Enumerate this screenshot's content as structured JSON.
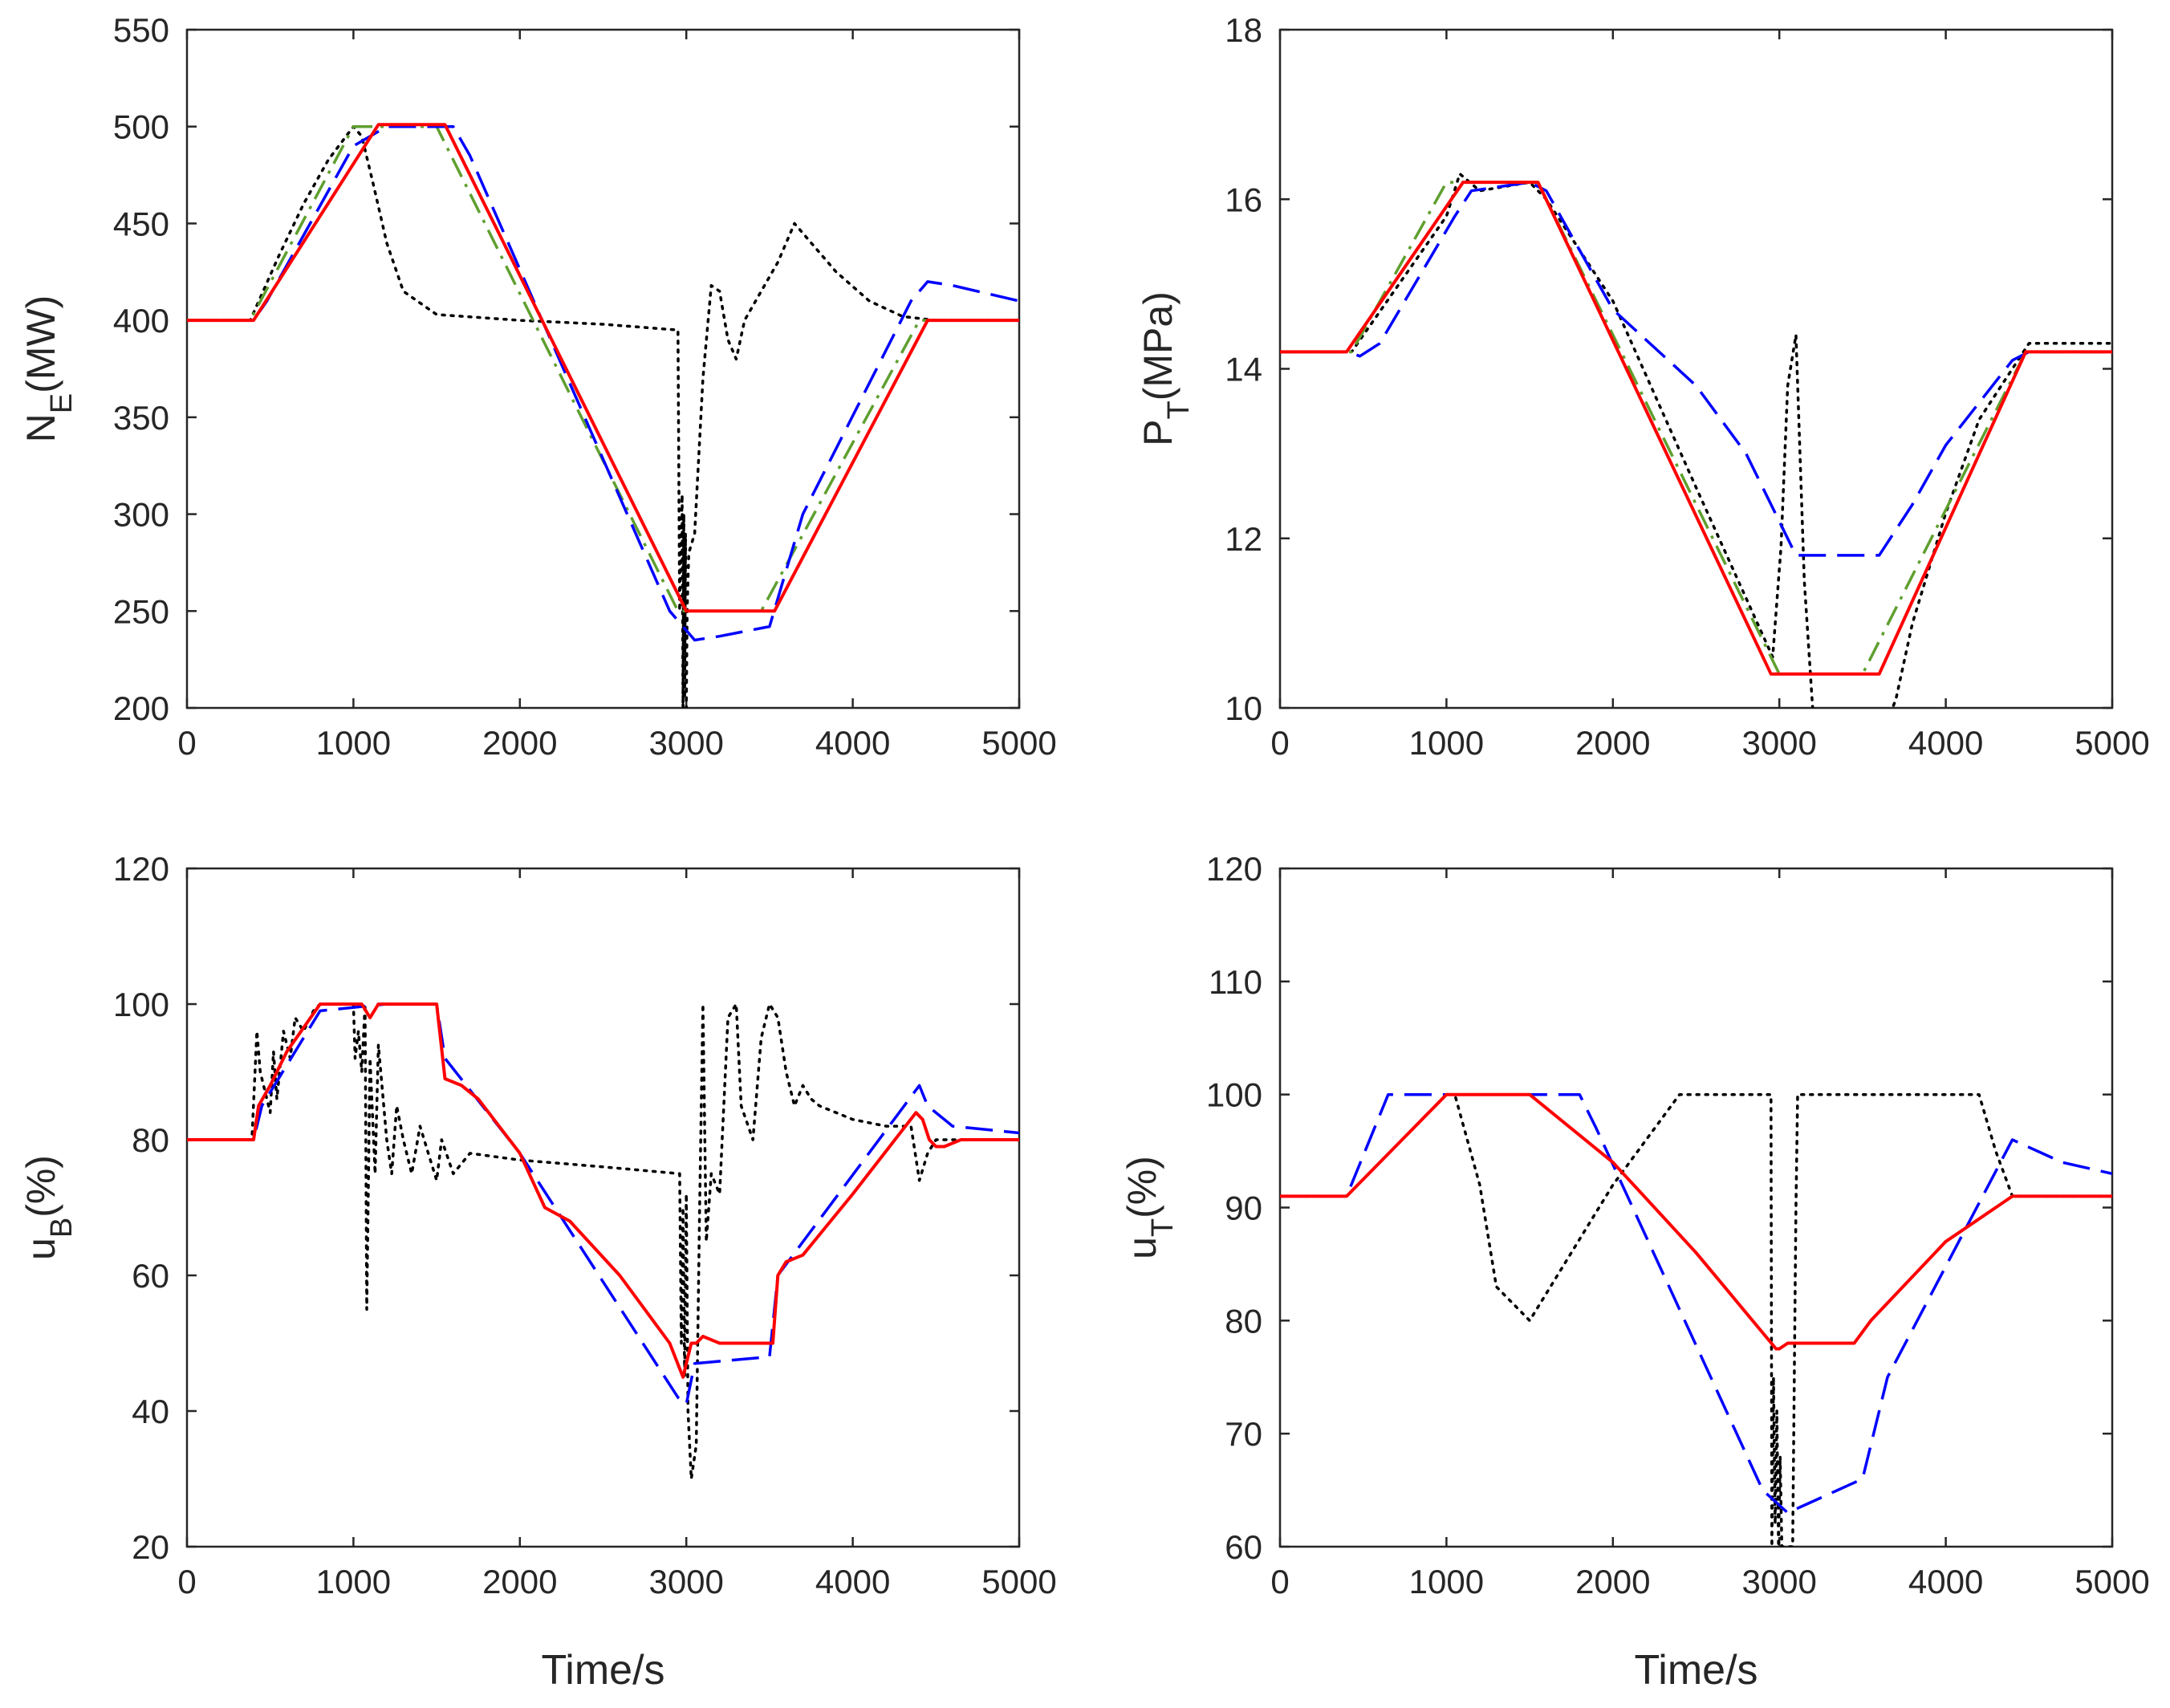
{
  "chart_data": [
    {
      "id": "ne",
      "type": "line",
      "xlabel": "",
      "ylabel": {
        "main": "N",
        "sub": "E",
        "rest": "(MW)"
      },
      "xlim": [
        0,
        5000
      ],
      "ylim": [
        200,
        550
      ],
      "xticks": [
        0,
        1000,
        2000,
        3000,
        4000,
        5000
      ],
      "yticks": [
        200,
        250,
        300,
        350,
        400,
        450,
        500,
        550
      ],
      "grid": false,
      "series": [
        {
          "style": "dotted",
          "color": "#000000",
          "x": [
            0,
            380,
            550,
            700,
            850,
            1000,
            1050,
            1120,
            1200,
            1300,
            1500,
            2000,
            2500,
            2950,
            2960,
            2975,
            2980,
            2985,
            2990,
            2995,
            3000,
            3005,
            3015,
            3050,
            3100,
            3150,
            3200,
            3250,
            3300,
            3350,
            3450,
            3550,
            3650,
            3750,
            3900,
            4100,
            4300,
            4500,
            5000
          ],
          "y": [
            400,
            400,
            433,
            460,
            483,
            500,
            495,
            470,
            440,
            415,
            403,
            400,
            398,
            395,
            250,
            310,
            200,
            300,
            205,
            290,
            200,
            250,
            280,
            290,
            370,
            418,
            415,
            390,
            380,
            400,
            415,
            430,
            450,
            440,
            425,
            410,
            402,
            400,
            400
          ]
        },
        {
          "style": "dash-dot",
          "color": "#5f9f2f",
          "x": [
            0,
            380,
            1000,
            1500,
            2950,
            3450,
            4400,
            5000
          ],
          "y": [
            400,
            400,
            500,
            500,
            250,
            250,
            400,
            400
          ]
        },
        {
          "style": "dashed",
          "color": "#0000ff",
          "x": [
            0,
            400,
            480,
            1000,
            1200,
            1600,
            1700,
            2900,
            3000,
            3050,
            3200,
            3500,
            3700,
            4350,
            4450,
            4600,
            5000
          ],
          "y": [
            400,
            400,
            410,
            490,
            500,
            500,
            485,
            250,
            240,
            235,
            237,
            242,
            300,
            410,
            420,
            418,
            410
          ]
        },
        {
          "style": "solid",
          "color": "#ff0000",
          "x": [
            0,
            400,
            1150,
            1550,
            3000,
            3530,
            4450,
            5000
          ],
          "y": [
            400,
            400,
            501,
            501,
            250,
            250,
            400,
            400
          ]
        }
      ]
    },
    {
      "id": "pt",
      "type": "line",
      "xlabel": "",
      "ylabel": {
        "main": "P",
        "sub": "T",
        "rest": "(MPa)"
      },
      "xlim": [
        0,
        5000
      ],
      "ylim": [
        10,
        18
      ],
      "xticks": [
        0,
        1000,
        2000,
        3000,
        4000,
        5000
      ],
      "yticks": [
        10,
        12,
        14,
        16,
        18
      ],
      "grid": false,
      "series": [
        {
          "style": "dotted",
          "color": "#000000",
          "x": [
            0,
            430,
            1000,
            1080,
            1200,
            1500,
            1600,
            2000,
            2500,
            2960,
            3010,
            3050,
            3100,
            3150,
            3200,
            3250,
            3300,
            3400,
            3500,
            3600,
            3700,
            3800,
            4000,
            4200,
            4500,
            5000
          ],
          "y": [
            14.2,
            14.2,
            15.8,
            16.3,
            16.1,
            16.2,
            16.0,
            14.8,
            12.6,
            10.6,
            11.9,
            13.8,
            14.4,
            11.5,
            10.0,
            9.8,
            9.6,
            9.5,
            9.5,
            9.6,
            10.1,
            11.0,
            12.3,
            13.4,
            14.3,
            14.3
          ]
        },
        {
          "style": "dash-dot",
          "color": "#5f9f2f",
          "x": [
            0,
            430,
            1000,
            1550,
            3000,
            3500,
            4480,
            5000
          ],
          "y": [
            14.2,
            14.2,
            16.2,
            16.2,
            10.4,
            10.4,
            14.2,
            14.2
          ]
        },
        {
          "style": "dashed",
          "color": "#0000ff",
          "x": [
            0,
            400,
            480,
            600,
            1050,
            1150,
            1500,
            1600,
            2000,
            2500,
            2800,
            3000,
            3100,
            3200,
            3500,
            3600,
            3800,
            4000,
            4200,
            4400,
            4500,
            5000
          ],
          "y": [
            14.2,
            14.2,
            14.15,
            14.3,
            15.8,
            16.1,
            16.2,
            16.1,
            14.7,
            13.8,
            13.0,
            12.2,
            11.8,
            11.8,
            11.8,
            11.8,
            12.4,
            13.1,
            13.6,
            14.1,
            14.2,
            14.2
          ]
        },
        {
          "style": "solid",
          "color": "#ff0000",
          "x": [
            0,
            400,
            1100,
            1550,
            2950,
            3600,
            4480,
            5000
          ],
          "y": [
            14.2,
            14.2,
            16.2,
            16.2,
            10.4,
            10.4,
            14.2,
            14.2
          ]
        }
      ]
    },
    {
      "id": "ub",
      "type": "line",
      "xlabel": "Time/s",
      "ylabel": {
        "main": "u",
        "sub": "B",
        "rest": "(%)"
      },
      "xlim": [
        0,
        5000
      ],
      "ylim": [
        20,
        120
      ],
      "xticks": [
        0,
        1000,
        2000,
        3000,
        4000,
        5000
      ],
      "yticks": [
        20,
        40,
        60,
        80,
        100,
        120
      ],
      "grid": false,
      "series": [
        {
          "style": "dotted",
          "color": "#000000",
          "x": [
            0,
            390,
            420,
            440,
            470,
            500,
            520,
            540,
            580,
            620,
            650,
            700,
            760,
            800,
            1000,
            1010,
            1030,
            1050,
            1070,
            1080,
            1100,
            1130,
            1150,
            1200,
            1230,
            1260,
            1300,
            1350,
            1400,
            1450,
            1500,
            1530,
            1600,
            1700,
            2000,
            2500,
            2960,
            2970,
            2980,
            2990,
            3000,
            3010,
            3030,
            3060,
            3080,
            3100,
            3120,
            3150,
            3200,
            3250,
            3300,
            3330,
            3400,
            3450,
            3500,
            3550,
            3600,
            3650,
            3700,
            3750,
            3800,
            4000,
            4200,
            4350,
            4400,
            4450,
            4500,
            4600,
            4700,
            5000
          ],
          "y": [
            80,
            80,
            96,
            90,
            87,
            84,
            93,
            86,
            96,
            92,
            98,
            96,
            99,
            100,
            100,
            92,
            96,
            90,
            100,
            55,
            92,
            75,
            94,
            80,
            75,
            85,
            80,
            75,
            82,
            78,
            74,
            80,
            75,
            78,
            77,
            76,
            75,
            50,
            70,
            45,
            72,
            40,
            30,
            35,
            70,
            100,
            65,
            75,
            72,
            98,
            100,
            85,
            80,
            95,
            100,
            98,
            90,
            85,
            88,
            86,
            85,
            83,
            82,
            82,
            74,
            78,
            80,
            80,
            80,
            80
          ]
        },
        {
          "style": "dashed",
          "color": "#0000ff",
          "x": [
            0,
            400,
            450,
            800,
            1200,
            1500,
            1550,
            2000,
            2950,
            3000,
            3050,
            3500,
            3550,
            4400,
            4450,
            4600,
            5000
          ],
          "y": [
            80,
            80,
            85,
            99,
            100,
            100,
            92,
            78,
            42,
            41,
            47,
            48,
            60,
            88,
            85,
            82,
            81
          ]
        },
        {
          "style": "solid",
          "color": "#ff0000",
          "x": [
            0,
            400,
            430,
            500,
            600,
            800,
            1050,
            1100,
            1150,
            1200,
            1500,
            1550,
            1650,
            1750,
            2000,
            2150,
            2300,
            2600,
            2900,
            2980,
            3000,
            3030,
            3060,
            3100,
            3200,
            3500,
            3520,
            3550,
            3600,
            3700,
            4000,
            4380,
            4420,
            4460,
            4500,
            4550,
            4650,
            4800,
            5000
          ],
          "y": [
            80,
            80,
            85,
            88,
            93,
            100,
            100,
            98,
            100,
            100,
            100,
            89,
            88,
            86,
            78,
            70,
            68,
            60,
            50,
            45,
            47,
            50,
            50,
            51,
            50,
            50,
            50,
            60,
            62,
            63,
            72,
            84,
            83,
            80,
            79,
            79,
            80,
            80,
            80
          ]
        }
      ]
    },
    {
      "id": "ut",
      "type": "line",
      "xlabel": "Time/s",
      "ylabel": {
        "main": "u",
        "sub": "T",
        "rest": "(%)"
      },
      "xlim": [
        0,
        5000
      ],
      "ylim": [
        60,
        120
      ],
      "xticks": [
        0,
        1000,
        2000,
        3000,
        4000,
        5000
      ],
      "yticks": [
        60,
        70,
        80,
        90,
        100,
        110,
        120
      ],
      "grid": false,
      "series": [
        {
          "style": "dotted",
          "color": "#000000",
          "x": [
            0,
            400,
            1000,
            1050,
            1200,
            1300,
            1500,
            2000,
            2400,
            2950,
            2955,
            2965,
            2975,
            2985,
            2995,
            3005,
            3015,
            3030,
            3050,
            3080,
            3100,
            3110,
            4200,
            4300,
            4400,
            5000
          ],
          "y": [
            91,
            91,
            100,
            100,
            92,
            83,
            80,
            92,
            100,
            100,
            60,
            75,
            62,
            72,
            60,
            68,
            60,
            60,
            60,
            60,
            90,
            100,
            100,
            95,
            91,
            91
          ]
        },
        {
          "style": "dashed",
          "color": "#0000ff",
          "x": [
            0,
            400,
            650,
            1800,
            1900,
            2900,
            3050,
            3500,
            3650,
            4400,
            4700,
            5000
          ],
          "y": [
            91,
            91,
            100,
            100,
            97,
            65,
            63,
            66,
            75,
            96,
            94,
            93
          ]
        },
        {
          "style": "solid",
          "color": "#ff0000",
          "x": [
            0,
            400,
            1000,
            1500,
            2000,
            2500,
            2980,
            3000,
            3050,
            3450,
            3550,
            4000,
            4400,
            4500,
            5000
          ],
          "y": [
            91,
            91,
            100,
            100,
            94,
            86,
            77.5,
            77.5,
            78,
            78,
            80,
            87,
            91,
            91,
            91
          ]
        }
      ]
    }
  ]
}
